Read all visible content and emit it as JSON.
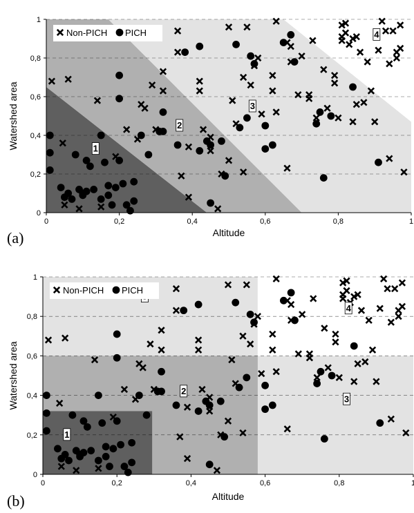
{
  "chart_data": [
    {
      "type": "scatter",
      "panel_label": "(a)",
      "xlabel": "Altitude",
      "ylabel": "Watershed area",
      "xlim": [
        0,
        1
      ],
      "ylim": [
        0,
        1
      ],
      "xticks": [
        "0",
        "0,2",
        "0,4",
        "0,6",
        "0,8",
        "1"
      ],
      "yticks": [
        "0",
        "0,2",
        "0,4",
        "0,6",
        "0,8",
        "1"
      ],
      "grid": "horizontal dashed",
      "legend": {
        "placement": "top-left",
        "entries": [
          "Non-PICH",
          "PICH"
        ]
      },
      "zones": [
        {
          "label": "1",
          "color": "#5f5f5f",
          "polygon": [
            [
              0,
              0
            ],
            [
              0,
              0.65
            ],
            [
              0.44,
              0
            ]
          ]
        },
        {
          "label": "2",
          "color": "#b0b0b0",
          "polygon": [
            [
              0,
              0.65
            ],
            [
              0,
              1
            ],
            [
              0.17,
              1
            ],
            [
              0.7,
              0
            ],
            [
              0.44,
              0
            ]
          ]
        },
        {
          "label": "3",
          "color": "#e3e3e3",
          "polygon": [
            [
              0.17,
              1
            ],
            [
              0.65,
              1
            ],
            [
              1,
              0.47
            ],
            [
              1,
              0
            ],
            [
              0.7,
              0
            ]
          ]
        },
        {
          "label": "4",
          "color": "#ffffff",
          "polygon": [
            [
              0.65,
              1
            ],
            [
              1,
              1
            ],
            [
              1,
              0.47
            ]
          ]
        }
      ],
      "zone_labels": [
        {
          "label": "1",
          "x": 0.135,
          "y": 0.33
        },
        {
          "label": "2",
          "x": 0.365,
          "y": 0.45
        },
        {
          "label": "3",
          "x": 0.565,
          "y": 0.55
        },
        {
          "label": "4",
          "x": 0.905,
          "y": 0.92
        }
      ]
    },
    {
      "type": "scatter",
      "panel_label": "(b)",
      "xlabel": "Altitude",
      "ylabel": "Watershed area",
      "xlim": [
        0,
        1
      ],
      "ylim": [
        0,
        1
      ],
      "xticks": [
        "0",
        "0,2",
        "0,4",
        "0,6",
        "0,8",
        "1"
      ],
      "yticks": [
        "0",
        "0,2",
        "0,4",
        "0,6",
        "0,8",
        "1"
      ],
      "grid": "horizontal dashed",
      "legend": {
        "placement": "top-left",
        "entries": [
          "Non-PICH",
          "PICH"
        ]
      },
      "zones": [
        {
          "label": "3",
          "color": "#e3e3e3",
          "rect": [
            0,
            0,
            0.58,
            1
          ]
        },
        {
          "label": "3",
          "color": "#e3e3e3",
          "rect": [
            0.58,
            0,
            1,
            0.6
          ]
        },
        {
          "label": "4",
          "color": "#ffffff",
          "rect": [
            0.58,
            0.6,
            1,
            1
          ]
        },
        {
          "label": "2",
          "color": "#b0b0b0",
          "rect": [
            0,
            0,
            0.58,
            0.6
          ]
        },
        {
          "label": "1",
          "color": "#5f5f5f",
          "rect": [
            0,
            0,
            0.295,
            0.32
          ]
        }
      ],
      "zone_labels": [
        {
          "label": "1",
          "x": 0.065,
          "y": 0.2
        },
        {
          "label": "2",
          "x": 0.38,
          "y": 0.42
        },
        {
          "label": "3",
          "x": 0.275,
          "y": 0.9
        },
        {
          "label": "3",
          "x": 0.82,
          "y": 0.38
        },
        {
          "label": "4",
          "x": 0.825,
          "y": 0.84
        }
      ]
    }
  ],
  "shared_points": {
    "non_pich": [
      [
        0.015,
        0.68
      ],
      [
        0.06,
        0.69
      ],
      [
        0.045,
        0.36
      ],
      [
        0.05,
        0.04
      ],
      [
        0.09,
        0.02
      ],
      [
        0.14,
        0.58
      ],
      [
        0.15,
        0.03
      ],
      [
        0.19,
        0.29
      ],
      [
        0.22,
        0.43
      ],
      [
        0.26,
        0.56
      ],
      [
        0.27,
        0.54
      ],
      [
        0.25,
        0.38
      ],
      [
        0.29,
        0.66
      ],
      [
        0.32,
        0.63
      ],
      [
        0.32,
        0.73
      ],
      [
        0.3,
        0.43
      ],
      [
        0.36,
        0.94
      ],
      [
        0.36,
        0.83
      ],
      [
        0.37,
        0.19
      ],
      [
        0.39,
        0.08
      ],
      [
        0.39,
        0.34
      ],
      [
        0.42,
        0.68
      ],
      [
        0.42,
        0.63
      ],
      [
        0.43,
        0.43
      ],
      [
        0.45,
        0.39
      ],
      [
        0.45,
        0.32
      ],
      [
        0.47,
        0.02
      ],
      [
        0.48,
        0.2
      ],
      [
        0.5,
        0.96
      ],
      [
        0.51,
        0.58
      ],
      [
        0.5,
        0.27
      ],
      [
        0.52,
        0.46
      ],
      [
        0.54,
        0.7
      ],
      [
        0.54,
        0.21
      ],
      [
        0.55,
        0.96
      ],
      [
        0.56,
        0.66
      ],
      [
        0.57,
        0.76
      ],
      [
        0.58,
        0.8
      ],
      [
        0.59,
        0.51
      ],
      [
        0.62,
        0.63
      ],
      [
        0.62,
        0.71
      ],
      [
        0.63,
        0.99
      ],
      [
        0.63,
        0.52
      ],
      [
        0.66,
        0.23
      ],
      [
        0.66,
        0.88
      ],
      [
        0.67,
        0.78
      ],
      [
        0.67,
        0.86
      ],
      [
        0.69,
        0.61
      ],
      [
        0.7,
        0.81
      ],
      [
        0.72,
        0.61
      ],
      [
        0.72,
        0.59
      ],
      [
        0.73,
        0.89
      ],
      [
        0.74,
        0.49
      ],
      [
        0.76,
        0.74
      ],
      [
        0.77,
        0.54
      ],
      [
        0.79,
        0.71
      ],
      [
        0.79,
        0.67
      ],
      [
        0.8,
        0.49
      ],
      [
        0.81,
        0.91
      ],
      [
        0.81,
        0.97
      ],
      [
        0.81,
        0.89
      ],
      [
        0.82,
        0.93
      ],
      [
        0.82,
        0.98
      ],
      [
        0.83,
        0.87
      ],
      [
        0.84,
        0.9
      ],
      [
        0.84,
        0.47
      ],
      [
        0.85,
        0.91
      ],
      [
        0.85,
        0.56
      ],
      [
        0.86,
        0.83
      ],
      [
        0.87,
        0.57
      ],
      [
        0.88,
        0.78
      ],
      [
        0.89,
        0.63
      ],
      [
        0.9,
        0.47
      ],
      [
        0.91,
        0.84
      ],
      [
        0.92,
        0.99
      ],
      [
        0.93,
        0.94
      ],
      [
        0.94,
        0.28
      ],
      [
        0.94,
        0.77
      ],
      [
        0.95,
        0.94
      ],
      [
        0.96,
        0.8
      ],
      [
        0.96,
        0.83
      ],
      [
        0.97,
        0.97
      ],
      [
        0.97,
        0.85
      ],
      [
        0.98,
        0.21
      ]
    ],
    "pich": [
      [
        0.01,
        0.4
      ],
      [
        0.01,
        0.31
      ],
      [
        0.01,
        0.22
      ],
      [
        0.04,
        0.13
      ],
      [
        0.05,
        0.08
      ],
      [
        0.06,
        0.1
      ],
      [
        0.07,
        0.07
      ],
      [
        0.08,
        0.3
      ],
      [
        0.09,
        0.12
      ],
      [
        0.1,
        0.09
      ],
      [
        0.1,
        0.1
      ],
      [
        0.11,
        0.27
      ],
      [
        0.11,
        0.11
      ],
      [
        0.12,
        0.24
      ],
      [
        0.13,
        0.12
      ],
      [
        0.15,
        0.07
      ],
      [
        0.15,
        0.4
      ],
      [
        0.16,
        0.26
      ],
      [
        0.17,
        0.14
      ],
      [
        0.17,
        0.09
      ],
      [
        0.18,
        0.04
      ],
      [
        0.19,
        0.13
      ],
      [
        0.2,
        0.71
      ],
      [
        0.2,
        0.59
      ],
      [
        0.2,
        0.27
      ],
      [
        0.21,
        0.15
      ],
      [
        0.22,
        0.04
      ],
      [
        0.23,
        0.01
      ],
      [
        0.24,
        0.06
      ],
      [
        0.24,
        0.16
      ],
      [
        0.26,
        0.4
      ],
      [
        0.28,
        0.3
      ],
      [
        0.31,
        0.42
      ],
      [
        0.32,
        0.52
      ],
      [
        0.32,
        0.42
      ],
      [
        0.36,
        0.35
      ],
      [
        0.38,
        0.83
      ],
      [
        0.42,
        0.86
      ],
      [
        0.42,
        0.32
      ],
      [
        0.44,
        0.37
      ],
      [
        0.45,
        0.35
      ],
      [
        0.45,
        0.05
      ],
      [
        0.48,
        0.37
      ],
      [
        0.49,
        0.19
      ],
      [
        0.52,
        0.87
      ],
      [
        0.53,
        0.44
      ],
      [
        0.55,
        0.49
      ],
      [
        0.56,
        0.81
      ],
      [
        0.57,
        0.77
      ],
      [
        0.6,
        0.45
      ],
      [
        0.6,
        0.33
      ],
      [
        0.62,
        0.35
      ],
      [
        0.65,
        0.88
      ],
      [
        0.67,
        0.92
      ],
      [
        0.68,
        0.78
      ],
      [
        0.74,
        0.46
      ],
      [
        0.75,
        0.52
      ],
      [
        0.76,
        0.18
      ],
      [
        0.78,
        0.5
      ],
      [
        0.84,
        0.65
      ],
      [
        0.91,
        0.26
      ]
    ]
  }
}
